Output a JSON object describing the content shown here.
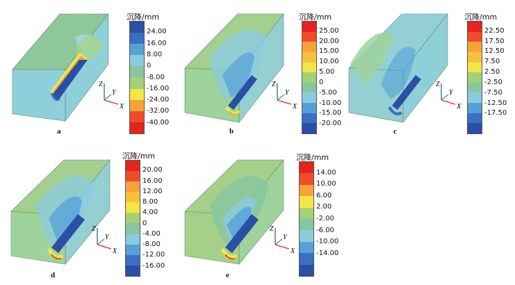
{
  "legend_title": "沉降/mm",
  "axes": {
    "z": "Z",
    "y": "Y",
    "x": "X"
  },
  "panels": [
    {
      "caption": "a",
      "labels": [
        "24.00",
        "16.00",
        "8.00",
        "0",
        "-8.00",
        "-16.00",
        "-24.00",
        "-32.00",
        "-40.00"
      ],
      "colors": [
        "#2b4fa4",
        "#3a6fc2",
        "#56a0d8",
        "#8bcbe0",
        "#86c6a0",
        "#a4d178",
        "#f4e646",
        "#f8a23a",
        "#ef4c2c",
        "#e5231f"
      ]
    },
    {
      "caption": "b",
      "labels": [
        "25.00",
        "20.00",
        "15.00",
        "10.00",
        "5.00",
        "0",
        "-5.00",
        "-10.00",
        "-15.00",
        "-20.00"
      ],
      "colors": [
        "#e5231f",
        "#ef4c2c",
        "#f8a23a",
        "#f6c23c",
        "#f4e646",
        "#a4d178",
        "#86c6a0",
        "#8bcbe0",
        "#56a0d8",
        "#3a6fc2",
        "#2b4fa4"
      ]
    },
    {
      "caption": "c",
      "labels": [
        "22.50",
        "17.50",
        "12.50",
        "7.50",
        "2.50",
        "-2.50",
        "-7.50",
        "-12.50",
        "-17.50"
      ],
      "colors": [
        "#e5231f",
        "#ef4c2c",
        "#f8a23a",
        "#f6c23c",
        "#f4e646",
        "#a4d178",
        "#86c6a0",
        "#8bcbe0",
        "#56a0d8",
        "#3a6fc2",
        "#2b4fa4"
      ]
    },
    {
      "caption": "d",
      "labels": [
        "20.00",
        "16.00",
        "12.00",
        "8.00",
        "4.00",
        "0",
        "-4.00",
        "-8.00",
        "-12.00",
        "-16.00"
      ],
      "colors": [
        "#e5231f",
        "#ef4c2c",
        "#f8a23a",
        "#f6c23c",
        "#f4e646",
        "#a4d178",
        "#86c6a0",
        "#8bcbe0",
        "#56a0d8",
        "#3a6fc2",
        "#2b4fa4"
      ]
    },
    {
      "caption": "e",
      "labels": [
        "14.00",
        "10.00",
        "6.00",
        "2.00",
        "-2.00",
        "-6.00",
        "-10.00",
        "-14.00"
      ],
      "colors": [
        "#e5231f",
        "#ef4c2c",
        "#f8a23a",
        "#f4e646",
        "#a4d178",
        "#86c6a0",
        "#8bcbe0",
        "#56a0d8",
        "#3a6fc2",
        "#2b4fa4"
      ]
    }
  ]
}
